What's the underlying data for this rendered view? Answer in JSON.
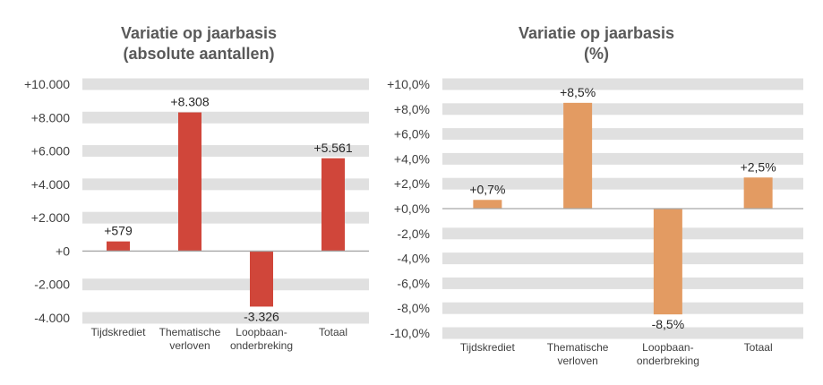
{
  "chart_data": [
    {
      "type": "bar",
      "title": [
        "Variatie op jaarbasis",
        "(absolute aantallen)"
      ],
      "categories": [
        [
          "Tijdskrediet"
        ],
        [
          "Thematische",
          "verloven"
        ],
        [
          "Loopbaan-",
          "onderbreking"
        ],
        [
          "Totaal"
        ]
      ],
      "values": [
        579,
        8308,
        -3326,
        5561
      ],
      "data_labels": [
        "+579",
        "+8.308",
        "-3.326",
        "+5.561"
      ],
      "yticks": [
        10000,
        8000,
        6000,
        4000,
        2000,
        0,
        -2000,
        -4000
      ],
      "ytick_labels": [
        "+10.000",
        "+8.000",
        "+6.000",
        "+4.000",
        "+2.000",
        "+0",
        "-2.000",
        "-4.000"
      ],
      "ylim": [
        -4000,
        10000
      ],
      "xlabel": "",
      "ylabel": "",
      "grid": "banded",
      "color": "#D0463A"
    },
    {
      "type": "bar",
      "title": [
        "Variatie op jaarbasis",
        "(%)"
      ],
      "categories": [
        [
          "Tijdskrediet"
        ],
        [
          "Thematische",
          "verloven"
        ],
        [
          "Loopbaan-",
          "onderbreking"
        ],
        [
          "Totaal"
        ]
      ],
      "values": [
        0.7,
        8.5,
        -8.5,
        2.5
      ],
      "data_labels": [
        "+0,7%",
        "+8,5%",
        "-8,5%",
        "+2,5%"
      ],
      "yticks": [
        10,
        8,
        6,
        4,
        2,
        0,
        -2,
        -4,
        -6,
        -8,
        -10
      ],
      "ytick_labels": [
        "+10,0%",
        "+8,0%",
        "+6,0%",
        "+4,0%",
        "+2,0%",
        "+0,0%",
        "-2,0%",
        "-4,0%",
        "-6,0%",
        "-8,0%",
        "-10,0%"
      ],
      "ylim": [
        -10,
        10
      ],
      "xlabel": "",
      "ylabel": "",
      "grid": "banded",
      "color": "#E39B62"
    }
  ]
}
